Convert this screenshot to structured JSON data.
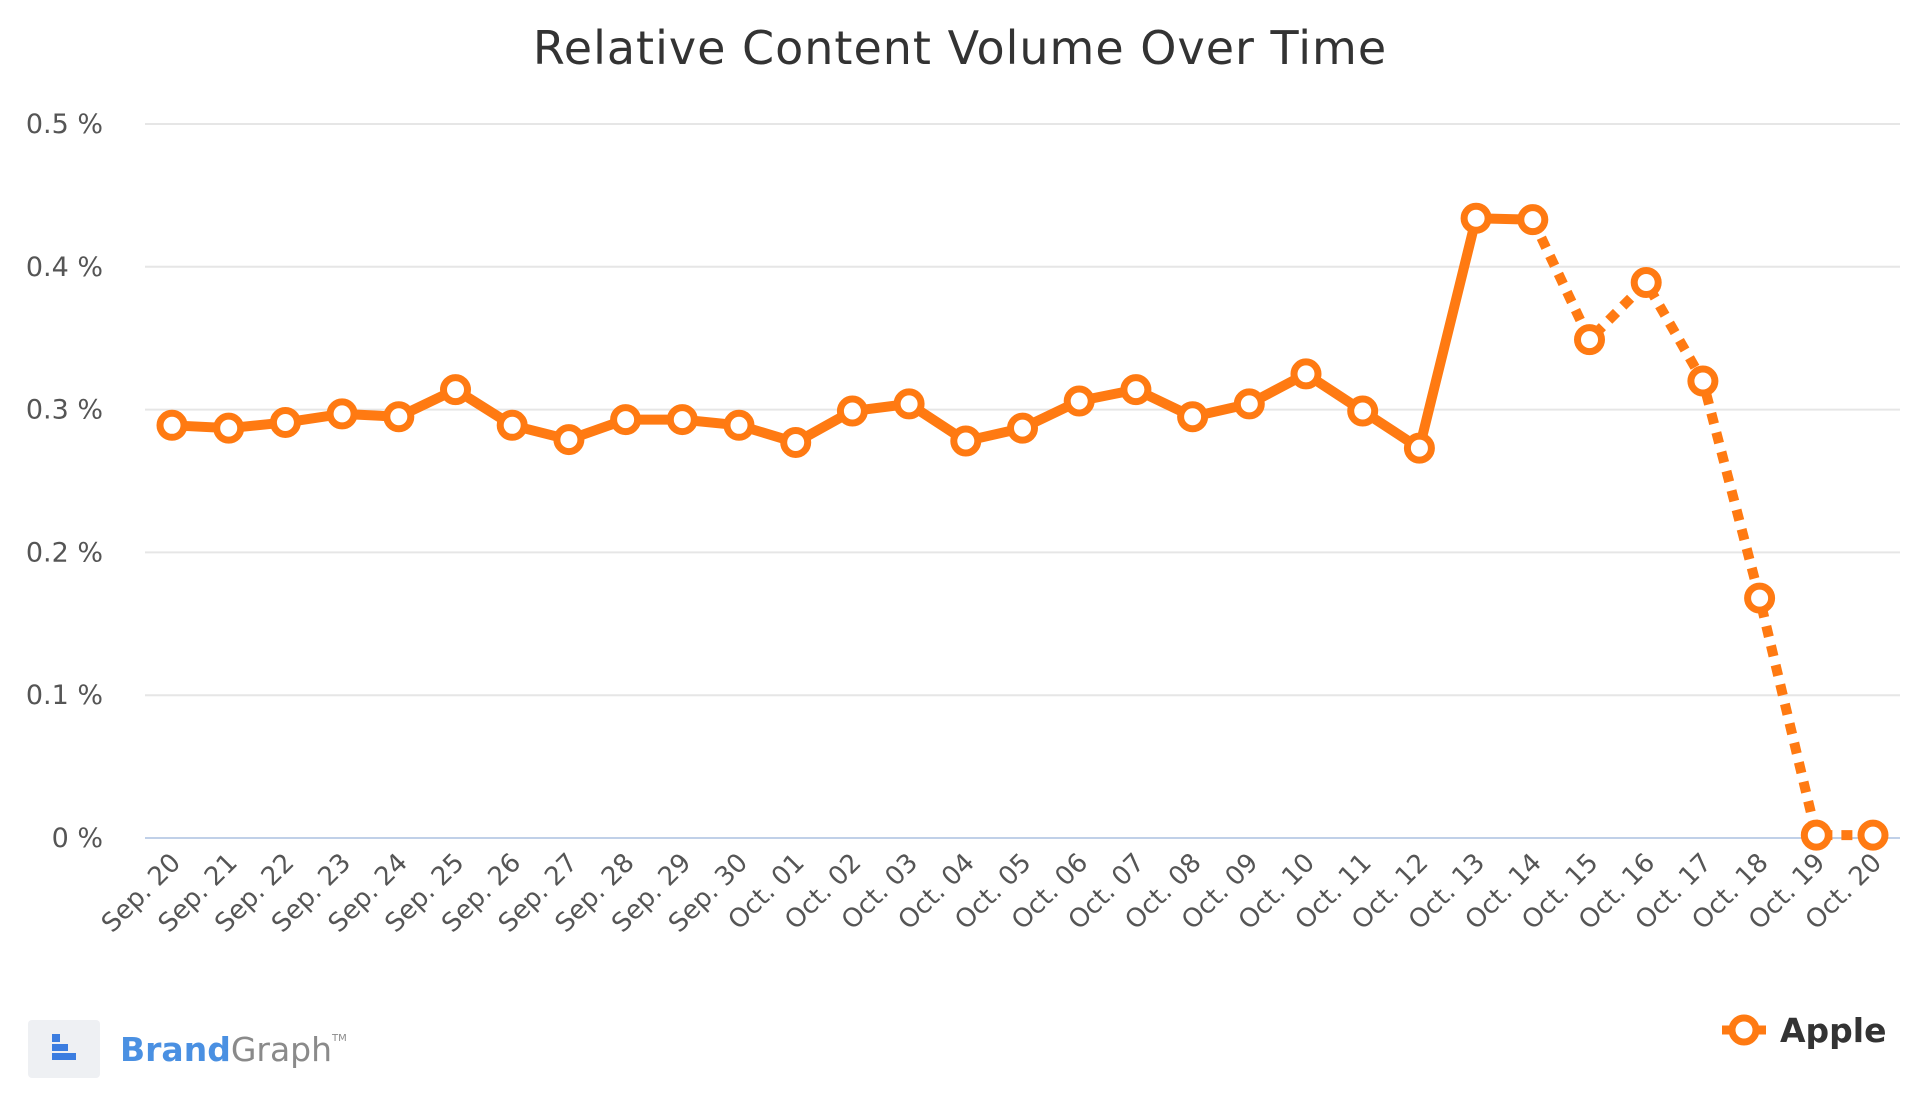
{
  "chart_data": {
    "type": "line",
    "title": "Relative Content Volume Over Time",
    "xlabel": "",
    "ylabel": "",
    "ylim": [
      0,
      0.5
    ],
    "yticks": [
      "0 %",
      "0.1 %",
      "0.2 %",
      "0.3 %",
      "0.4 %",
      "0.5 %"
    ],
    "grid": true,
    "legend_position": "bottom-right",
    "categories": [
      "Sep. 20",
      "Sep. 21",
      "Sep. 22",
      "Sep. 23",
      "Sep. 24",
      "Sep. 25",
      "Sep. 26",
      "Sep. 27",
      "Sep. 28",
      "Sep. 29",
      "Sep. 30",
      "Oct. 01",
      "Oct. 02",
      "Oct. 03",
      "Oct. 04",
      "Oct. 05",
      "Oct. 06",
      "Oct. 07",
      "Oct. 08",
      "Oct. 09",
      "Oct. 10",
      "Oct. 11",
      "Oct. 12",
      "Oct. 13",
      "Oct. 14",
      "Oct. 15",
      "Oct. 16",
      "Oct. 17",
      "Oct. 18",
      "Oct. 19",
      "Oct. 20"
    ],
    "series": [
      {
        "name": "Apple",
        "color": "#ff7a12",
        "values": [
          0.289,
          0.287,
          0.291,
          0.297,
          0.295,
          0.314,
          0.289,
          0.279,
          0.293,
          0.293,
          0.289,
          0.277,
          0.299,
          0.304,
          0.278,
          0.287,
          0.306,
          0.314,
          0.295,
          0.304,
          0.325,
          0.299,
          0.273,
          0.434,
          0.433,
          0.349,
          0.389,
          0.32,
          0.168,
          0.002,
          0.002
        ],
        "dashed_from_category": "Oct. 14"
      }
    ]
  },
  "brand": {
    "name_a": "Brand",
    "name_b": "Graph",
    "tm": "TM",
    "icon": "bar-logo-icon"
  },
  "colors": {
    "grid": "#e6e6e6",
    "baseline": "#c0d0e8",
    "line": "#ff7a12"
  }
}
